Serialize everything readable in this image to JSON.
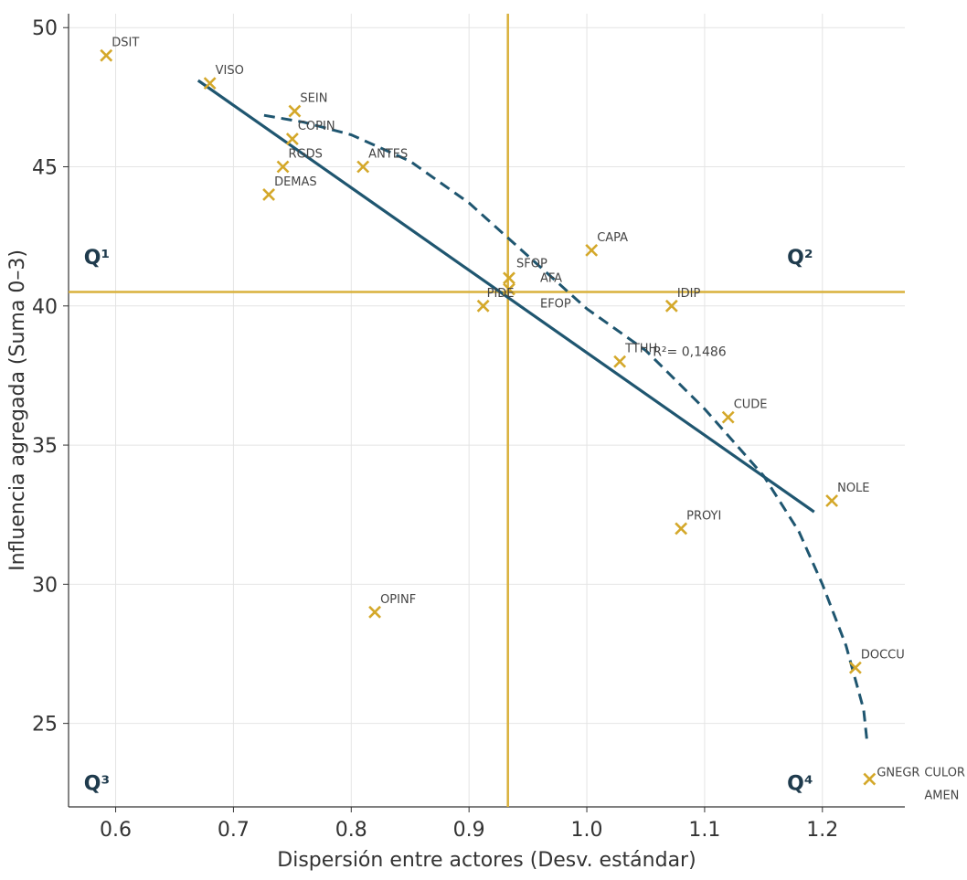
{
  "chart_data": {
    "type": "scatter",
    "title": "",
    "xlabel": "Dispersión entre actores (Desv. estándar)",
    "ylabel": "Influencia agregada (Suma 0–3)",
    "xlim": [
      0.56,
      1.27
    ],
    "ylim": [
      22,
      50.5
    ],
    "x_ticks": [
      0.6,
      0.7,
      0.8,
      0.9,
      1.0,
      1.1,
      1.2
    ],
    "x_tick_labels": [
      "0.6",
      "0.7",
      "0.8",
      "0.9",
      "1.0",
      "1.1",
      "1.2"
    ],
    "y_ticks": [
      25,
      30,
      35,
      40,
      45,
      50
    ],
    "y_tick_labels": [
      "25",
      "30",
      "35",
      "40",
      "45",
      "50"
    ],
    "grid": true,
    "marker": "x",
    "marker_color": "#d4a82a",
    "reference_line_color": "#d9b13b",
    "trend_color": "#1f5670",
    "points": [
      {
        "label": "DSIT",
        "x": 0.592,
        "y": 49
      },
      {
        "label": "VISO",
        "x": 0.68,
        "y": 48
      },
      {
        "label": "SEIN",
        "x": 0.752,
        "y": 47
      },
      {
        "label": "COPIN",
        "x": 0.75,
        "y": 46
      },
      {
        "label": "RGDS",
        "x": 0.742,
        "y": 45
      },
      {
        "label": "ANTES",
        "x": 0.81,
        "y": 45
      },
      {
        "label": "DEMAS",
        "x": 0.73,
        "y": 44
      },
      {
        "label": "CAPA",
        "x": 1.004,
        "y": 42
      },
      {
        "label": "SFOP",
        "x": 0.934,
        "y": 41
      },
      {
        "label": "AFA",
        "x": 0.934,
        "y": 41
      },
      {
        "label": "PIDE",
        "x": 0.912,
        "y": 40
      },
      {
        "label": "EFOP",
        "x": 0.934,
        "y": 40.6
      },
      {
        "label": "IDIP",
        "x": 1.072,
        "y": 40
      },
      {
        "label": "TTHH",
        "x": 1.028,
        "y": 38
      },
      {
        "label": "CUDE",
        "x": 1.12,
        "y": 36
      },
      {
        "label": "NOLE",
        "x": 1.208,
        "y": 33
      },
      {
        "label": "PROYI",
        "x": 1.08,
        "y": 32
      },
      {
        "label": "OPINF",
        "x": 0.82,
        "y": 29
      },
      {
        "label": "DOCCU",
        "x": 1.228,
        "y": 27
      },
      {
        "label": "GNEGR",
        "x": 1.24,
        "y": 23
      },
      {
        "label": "CULOR",
        "x": 1.24,
        "y": 23
      },
      {
        "label": "AMEN",
        "x": 1.24,
        "y": 23
      }
    ],
    "reference_lines": {
      "x": 0.933,
      "y": 40.5
    },
    "linear_fit": {
      "x": [
        0.67,
        1.193
      ],
      "y": [
        48.1,
        32.6
      ]
    },
    "curve_fit": {
      "style": "dashed",
      "x": [
        0.726,
        0.76,
        0.8,
        0.85,
        0.9,
        0.95,
        1.0,
        1.05,
        1.1,
        1.15,
        1.18,
        1.2,
        1.22,
        1.235,
        1.238
      ],
      "y": [
        46.85,
        46.6,
        46.15,
        45.2,
        43.7,
        41.8,
        39.9,
        38.4,
        36.3,
        33.9,
        31.9,
        30.0,
        27.8,
        25.5,
        24.3
      ]
    },
    "annotations": [
      {
        "text": "R²= 0,1486",
        "x": 1.056,
        "y": 38.2
      }
    ],
    "quadrant_labels": [
      {
        "text": "Q¹",
        "x": 0.573,
        "y": 41.5
      },
      {
        "text": "Q²",
        "x": 1.17,
        "y": 41.5
      },
      {
        "text": "Q³",
        "x": 0.573,
        "y": 22.6
      },
      {
        "text": "Q⁴",
        "x": 1.17,
        "y": 22.6
      }
    ]
  }
}
